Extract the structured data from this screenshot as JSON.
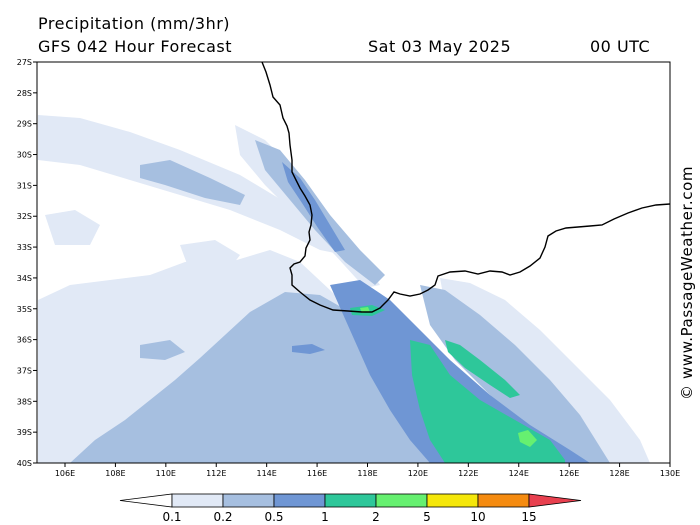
{
  "header": {
    "title": "Precipitation (mm/3hr)",
    "subtitle": "GFS 042 Hour Forecast",
    "date": "Sat 03 May 2025",
    "time": "00 UTC"
  },
  "watermark": "© www.PassageWeather.com",
  "map": {
    "lat_labels": [
      "27S",
      "28S",
      "29S",
      "30S",
      "31S",
      "32S",
      "33S",
      "34S",
      "35S",
      "36S",
      "37S",
      "38S",
      "39S",
      "40S"
    ],
    "lon_labels": [
      "106E",
      "108E",
      "110E",
      "112E",
      "114E",
      "116E",
      "118E",
      "120E",
      "122E",
      "124E",
      "126E",
      "128E",
      "130E"
    ],
    "lat_range": [
      -40,
      -27
    ],
    "lon_range": [
      104.5,
      130
    ],
    "coast_color": "#000000"
  },
  "legend": {
    "labels": [
      "0.1",
      "0.2",
      "0.5",
      "1",
      "2",
      "5",
      "10",
      "15"
    ],
    "colors": [
      "#ffffff",
      "#e1e9f6",
      "#a6bfe0",
      "#6f96d4",
      "#2ec79a",
      "#66f070",
      "#f5e70a",
      "#f58b10",
      "#e8404f"
    ]
  }
}
